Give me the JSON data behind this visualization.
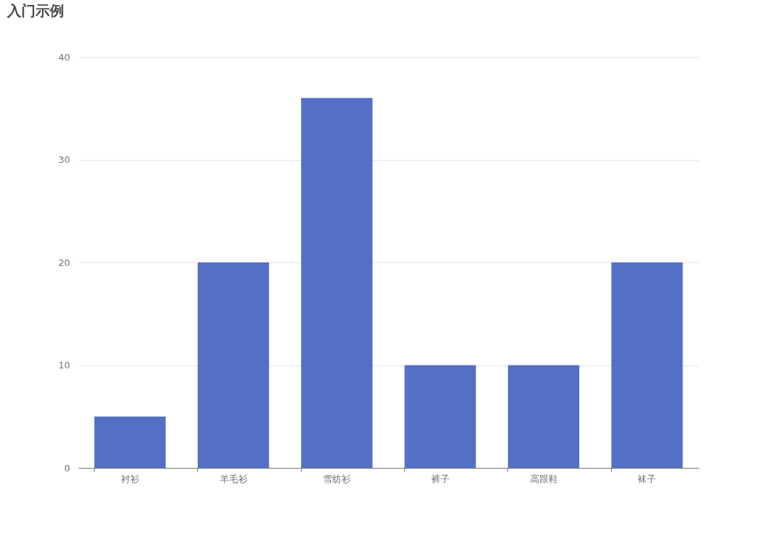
{
  "chart_data": {
    "type": "bar",
    "title": "入门示例",
    "categories": [
      "衬衫",
      "羊毛衫",
      "雪纺衫",
      "裤子",
      "高跟鞋",
      "袜子"
    ],
    "values": [
      5,
      20,
      36,
      10,
      10,
      20
    ],
    "color": "#5470c6",
    "ylim": [
      0,
      40
    ],
    "yticks": [
      0,
      10,
      20,
      30,
      40
    ],
    "grid": "y"
  }
}
